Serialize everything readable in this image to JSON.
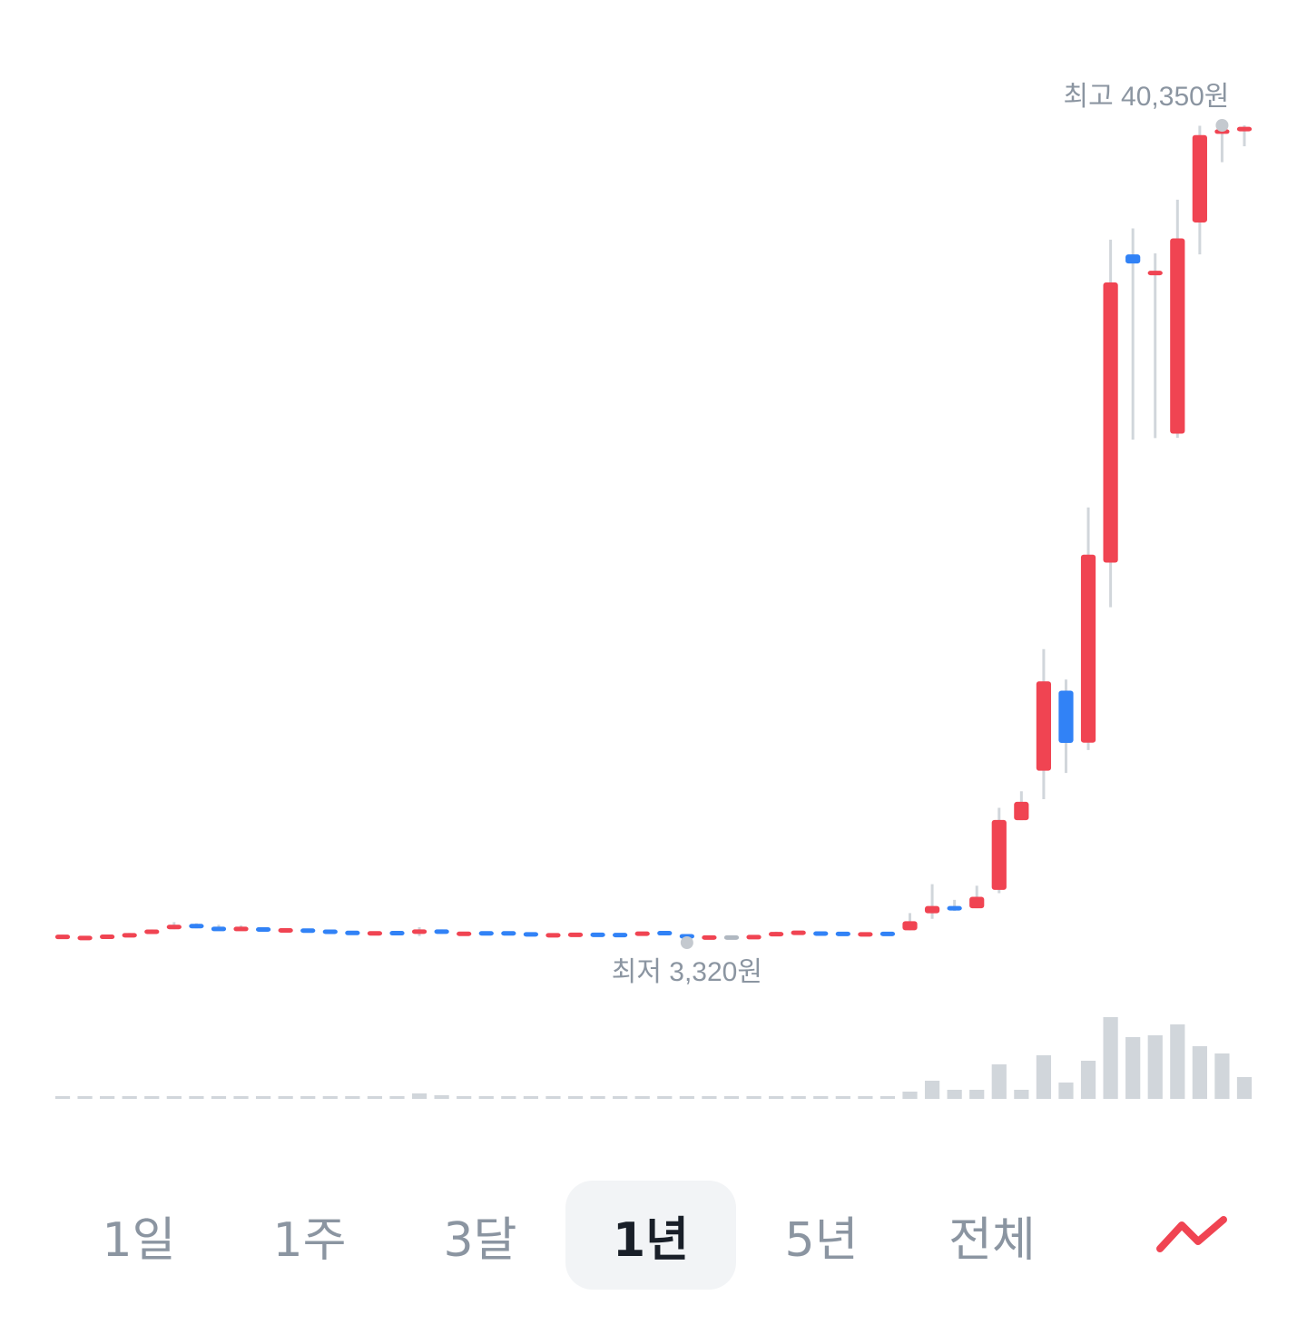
{
  "chart_data": {
    "type": "candlestick",
    "period": "1년",
    "annotations": {
      "high_label": "최고 40,350원",
      "low_label": "최저 3,320원"
    },
    "colors": {
      "up": "#f04452",
      "down": "#3182f6",
      "neutral": "#b0b8c1",
      "wick": "#d1d6db",
      "volume": "#d1d6db",
      "marker": "#c4c9cf",
      "label": "#8b95a1"
    },
    "candles": [
      {
        "o": 3600,
        "c": 3560,
        "h": 3680,
        "l": 3530,
        "dir": "up"
      },
      {
        "o": 3540,
        "c": 3520,
        "h": 3580,
        "l": 3500,
        "dir": "up"
      },
      {
        "o": 3560,
        "c": 3610,
        "h": 3650,
        "l": 3540,
        "dir": "up"
      },
      {
        "o": 3610,
        "c": 3700,
        "h": 3760,
        "l": 3600,
        "dir": "up"
      },
      {
        "o": 3800,
        "c": 3830,
        "h": 3920,
        "l": 3720,
        "dir": "up"
      },
      {
        "o": 4000,
        "c": 4060,
        "h": 4250,
        "l": 3930,
        "dir": "up"
      },
      {
        "o": 4100,
        "c": 4040,
        "h": 4200,
        "l": 3970,
        "dir": "down"
      },
      {
        "o": 3950,
        "c": 3930,
        "h": 4130,
        "l": 3900,
        "dir": "down"
      },
      {
        "o": 3930,
        "c": 3950,
        "h": 4100,
        "l": 3880,
        "dir": "up"
      },
      {
        "o": 3930,
        "c": 3900,
        "h": 4000,
        "l": 3860,
        "dir": "down"
      },
      {
        "o": 3880,
        "c": 3870,
        "h": 3930,
        "l": 3840,
        "dir": "up"
      },
      {
        "o": 3880,
        "c": 3850,
        "h": 3960,
        "l": 3820,
        "dir": "down"
      },
      {
        "o": 3830,
        "c": 3800,
        "h": 3850,
        "l": 3780,
        "dir": "down"
      },
      {
        "o": 3790,
        "c": 3730,
        "h": 3820,
        "l": 3700,
        "dir": "down"
      },
      {
        "o": 3730,
        "c": 3750,
        "h": 3780,
        "l": 3690,
        "dir": "up"
      },
      {
        "o": 3760,
        "c": 3740,
        "h": 3800,
        "l": 3720,
        "dir": "down"
      },
      {
        "o": 3760,
        "c": 3880,
        "h": 4020,
        "l": 3620,
        "dir": "up"
      },
      {
        "o": 3890,
        "c": 3750,
        "h": 3920,
        "l": 3720,
        "dir": "down"
      },
      {
        "o": 3720,
        "c": 3720,
        "h": 3760,
        "l": 3700,
        "dir": "up"
      },
      {
        "o": 3740,
        "c": 3740,
        "h": 3770,
        "l": 3720,
        "dir": "down"
      },
      {
        "o": 3740,
        "c": 3740,
        "h": 3770,
        "l": 3720,
        "dir": "down"
      },
      {
        "o": 3700,
        "c": 3690,
        "h": 3740,
        "l": 3670,
        "dir": "down"
      },
      {
        "o": 3650,
        "c": 3660,
        "h": 3700,
        "l": 3630,
        "dir": "up"
      },
      {
        "o": 3670,
        "c": 3680,
        "h": 3710,
        "l": 3650,
        "dir": "up"
      },
      {
        "o": 3680,
        "c": 3670,
        "h": 3730,
        "l": 3650,
        "dir": "down"
      },
      {
        "o": 3670,
        "c": 3660,
        "h": 3720,
        "l": 3640,
        "dir": "down"
      },
      {
        "o": 3720,
        "c": 3730,
        "h": 3760,
        "l": 3700,
        "dir": "up"
      },
      {
        "o": 3750,
        "c": 3750,
        "h": 3840,
        "l": 3710,
        "dir": "down"
      },
      {
        "o": 3650,
        "c": 3570,
        "h": 3670,
        "l": 3320,
        "dir": "down"
      },
      {
        "o": 3560,
        "c": 3540,
        "h": 3580,
        "l": 3520,
        "dir": "up"
      },
      {
        "o": 3550,
        "c": 3550,
        "h": 3620,
        "l": 3530,
        "dir": "neutral"
      },
      {
        "o": 3560,
        "c": 3580,
        "h": 3600,
        "l": 3530,
        "dir": "up"
      },
      {
        "o": 3670,
        "c": 3740,
        "h": 3820,
        "l": 3620,
        "dir": "up"
      },
      {
        "o": 3760,
        "c": 3780,
        "h": 3850,
        "l": 3740,
        "dir": "up"
      },
      {
        "o": 3740,
        "c": 3720,
        "h": 3780,
        "l": 3690,
        "dir": "down"
      },
      {
        "o": 3720,
        "c": 3710,
        "h": 3760,
        "l": 3690,
        "dir": "down"
      },
      {
        "o": 3700,
        "c": 3690,
        "h": 3730,
        "l": 3670,
        "dir": "up"
      },
      {
        "o": 3720,
        "c": 3710,
        "h": 3760,
        "l": 3680,
        "dir": "down"
      },
      {
        "o": 3880,
        "c": 4290,
        "h": 4660,
        "l": 3880,
        "dir": "up"
      },
      {
        "o": 4650,
        "c": 4980,
        "h": 5970,
        "l": 4400,
        "dir": "up"
      },
      {
        "o": 4880,
        "c": 4880,
        "h": 5260,
        "l": 4760,
        "dir": "down"
      },
      {
        "o": 4880,
        "c": 5400,
        "h": 5900,
        "l": 4880,
        "dir": "up"
      },
      {
        "o": 5710,
        "c": 8880,
        "h": 9430,
        "l": 5560,
        "dir": "up"
      },
      {
        "o": 8870,
        "c": 9700,
        "h": 10180,
        "l": 8870,
        "dir": "up"
      },
      {
        "o": 11110,
        "c": 15160,
        "h": 16620,
        "l": 9820,
        "dir": "up"
      },
      {
        "o": 14740,
        "c": 12370,
        "h": 15240,
        "l": 11010,
        "dir": "down"
      },
      {
        "o": 12380,
        "c": 20900,
        "h": 23040,
        "l": 12050,
        "dir": "up"
      },
      {
        "o": 20540,
        "c": 33230,
        "h": 35170,
        "l": 18520,
        "dir": "up"
      },
      {
        "o": 34090,
        "c": 34500,
        "h": 35680,
        "l": 26110,
        "dir": "down"
      },
      {
        "o": 33660,
        "c": 33660,
        "h": 34550,
        "l": 26180,
        "dir": "up"
      },
      {
        "o": 26380,
        "c": 35230,
        "h": 36980,
        "l": 26190,
        "dir": "up"
      },
      {
        "o": 35950,
        "c": 39910,
        "h": 40330,
        "l": 34500,
        "dir": "up"
      },
      {
        "o": 39980,
        "c": 40150,
        "h": 40350,
        "l": 38680,
        "dir": "up"
      },
      {
        "o": 40130,
        "c": 40230,
        "h": 40350,
        "l": 39400,
        "dir": "up"
      }
    ],
    "volumes": [
      1,
      1,
      1,
      1,
      1,
      1,
      1,
      1,
      1,
      1,
      1,
      1,
      1,
      1,
      1,
      1,
      3,
      2,
      1,
      1,
      1,
      1,
      1,
      1,
      1,
      1,
      1,
      1,
      1,
      1,
      1,
      1,
      1,
      1,
      1,
      1,
      1,
      1,
      4,
      10,
      5,
      5,
      19,
      5,
      24,
      9,
      21,
      45,
      34,
      35,
      41,
      29,
      25,
      12
    ]
  },
  "tabs": [
    {
      "label": "1일",
      "active": false
    },
    {
      "label": "1주",
      "active": false
    },
    {
      "label": "3달",
      "active": false
    },
    {
      "label": "1년",
      "active": true
    },
    {
      "label": "5년",
      "active": false
    },
    {
      "label": "전체",
      "active": false
    }
  ],
  "line_toggle_icon": "line-chart-icon"
}
